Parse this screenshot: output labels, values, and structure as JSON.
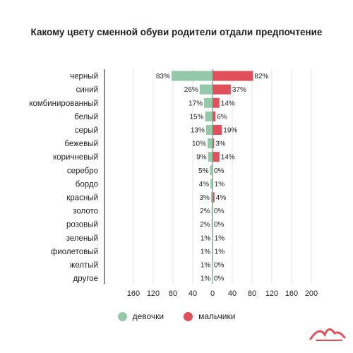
{
  "chart_data": {
    "type": "bar",
    "orientation": "horizontal-diverging",
    "title": "Какому цвету сменной обуви родители отдали  предпочтение",
    "categories": [
      "черный",
      "синий",
      "комбинированный",
      "белый",
      "серый",
      "бежевый",
      "коричневый",
      "серебро",
      "бордо",
      "красный",
      "золото",
      "розовый",
      "зеленый",
      "фиолетовый",
      "желтый",
      "другое"
    ],
    "series": [
      {
        "name": "девочки",
        "color": "#93c9a9",
        "values": [
          83,
          26,
          17,
          15,
          13,
          10,
          9,
          5,
          4,
          3,
          2,
          2,
          1,
          1,
          1,
          1
        ]
      },
      {
        "name": "мальчики",
        "color": "#e0505a",
        "values": [
          82,
          37,
          14,
          6,
          19,
          3,
          14,
          0,
          1,
          4,
          0,
          0,
          1,
          1,
          0,
          0
        ]
      }
    ],
    "value_suffix": "%",
    "xticks": [
      {
        "label": "160",
        "value": -160
      },
      {
        "label": "120",
        "value": -120
      },
      {
        "label": "80",
        "value": -80
      },
      {
        "label": "40",
        "value": -40
      },
      {
        "label": "0",
        "value": 0
      },
      {
        "label": "40",
        "value": 40
      },
      {
        "label": "80",
        "value": 80
      },
      {
        "label": "120",
        "value": 120
      },
      {
        "label": "160",
        "value": 160
      },
      {
        "label": "200",
        "value": 200
      }
    ],
    "xlim": [
      -180,
      220
    ],
    "grid": true,
    "legend_position": "bottom-center"
  },
  "logo": {
    "name": "brand-logo-icon",
    "color": "#e0505a"
  }
}
